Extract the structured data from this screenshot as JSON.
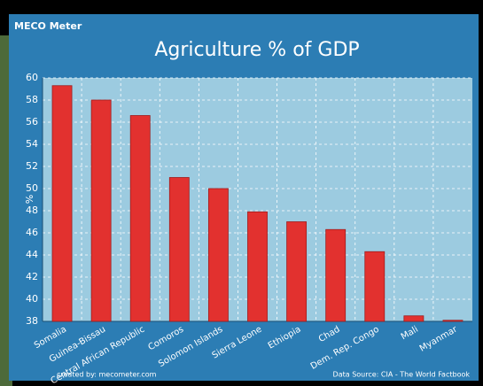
{
  "chart_data": {
    "type": "bar",
    "logo": "MECO Meter",
    "title": "Agriculture % of GDP",
    "y_label": "%",
    "categories": [
      "Somalia",
      "Guinea-Bissau",
      "Central African Republic",
      "Comoros",
      "Solomon Islands",
      "Sierra Leone",
      "Ethiopia",
      "Chad",
      "Dem. Rep. Congo",
      "Mali",
      "Myanmar"
    ],
    "values": [
      59.3,
      58,
      56.6,
      51,
      50,
      47.9,
      47,
      46.3,
      44.3,
      38.5,
      38.1
    ],
    "color": "#e2312f",
    "ylim": [
      38,
      60
    ],
    "yticks": [
      38,
      40,
      42,
      44,
      46,
      48,
      50,
      52,
      54,
      56,
      58,
      60
    ],
    "grid": true,
    "credit": "created by: mecometer.com",
    "source": "Data Source: CIA - The World Factbook"
  }
}
